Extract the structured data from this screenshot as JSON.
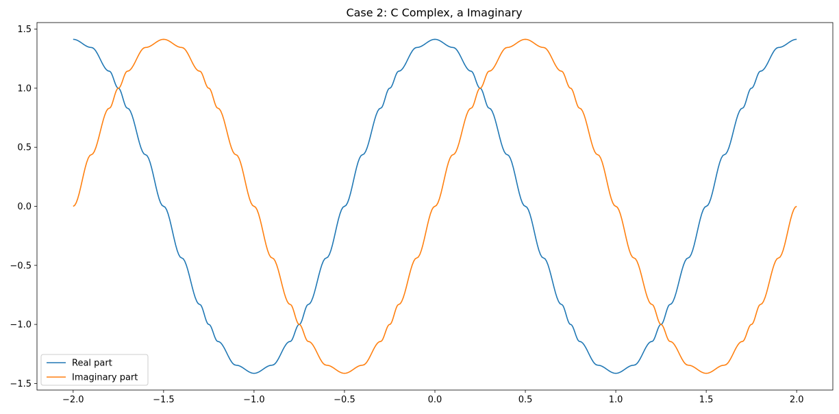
{
  "chart_data": {
    "type": "line",
    "title": "Case 2: C Complex, a Imaginary",
    "xlabel": "",
    "ylabel": "",
    "xlim": [
      -2.2,
      2.2
    ],
    "ylim": [
      -1.5556,
      1.5556
    ],
    "x_ticks": [
      -2.0,
      -1.5,
      -1.0,
      -0.5,
      0.0,
      0.5,
      1.0,
      1.5,
      2.0
    ],
    "x_tick_labels": [
      "−2.0",
      "−1.5",
      "−1.0",
      "−0.5",
      "0.0",
      "0.5",
      "1.0",
      "1.5",
      "2.0"
    ],
    "y_ticks": [
      1.5,
      1.0,
      0.5,
      0.0,
      -0.5,
      -1.0,
      -1.5
    ],
    "y_tick_labels": [
      "1.5",
      "1.0",
      "0.5",
      "0.0",
      "−0.5",
      "−1.0",
      "−1.5"
    ],
    "grid": false,
    "legend_position": "lower-left",
    "x": [
      -2.0,
      -1.9,
      -1.8,
      -1.75,
      -1.7,
      -1.6,
      -1.5,
      -1.4,
      -1.3,
      -1.25,
      -1.2,
      -1.1,
      -1.0,
      -0.9,
      -0.8,
      -0.75,
      -0.7,
      -0.6,
      -0.5,
      -0.4,
      -0.3,
      -0.25,
      -0.2,
      -0.1,
      0.0,
      0.1,
      0.2,
      0.25,
      0.3,
      0.4,
      0.5,
      0.6,
      0.7,
      0.75,
      0.8,
      0.9,
      1.0,
      1.1,
      1.2,
      1.25,
      1.3,
      1.4,
      1.5,
      1.6,
      1.7,
      1.75,
      1.8,
      1.9,
      2.0
    ],
    "series": [
      {
        "name": "Real part",
        "color": "#1f77b4",
        "values": [
          1.414,
          1.345,
          1.144,
          1.0,
          0.831,
          0.437,
          0.0,
          -0.437,
          -0.831,
          -1.0,
          -1.144,
          -1.345,
          -1.414,
          -1.345,
          -1.144,
          -1.0,
          -0.831,
          -0.437,
          0.0,
          0.437,
          0.831,
          1.0,
          1.144,
          1.345,
          1.414,
          1.345,
          1.144,
          1.0,
          0.831,
          0.437,
          0.0,
          -0.437,
          -0.831,
          -1.0,
          -1.144,
          -1.345,
          -1.414,
          -1.345,
          -1.144,
          -1.0,
          -0.831,
          -0.437,
          0.0,
          0.437,
          0.831,
          1.0,
          1.144,
          1.345,
          1.414
        ]
      },
      {
        "name": "Imaginary part",
        "color": "#ff7f0e",
        "values": [
          0.0,
          0.437,
          0.831,
          1.0,
          1.144,
          1.345,
          1.414,
          1.345,
          1.144,
          1.0,
          0.831,
          0.437,
          0.0,
          -0.437,
          -0.831,
          -1.0,
          -1.144,
          -1.345,
          -1.414,
          -1.345,
          -1.144,
          -1.0,
          -0.831,
          -0.437,
          0.0,
          0.437,
          0.831,
          1.0,
          1.144,
          1.345,
          1.414,
          1.345,
          1.144,
          1.0,
          0.831,
          0.437,
          0.0,
          -0.437,
          -0.831,
          -1.0,
          -1.144,
          -1.345,
          -1.414,
          -1.345,
          -1.144,
          -1.0,
          -0.831,
          -0.437,
          0.0
        ]
      }
    ]
  }
}
